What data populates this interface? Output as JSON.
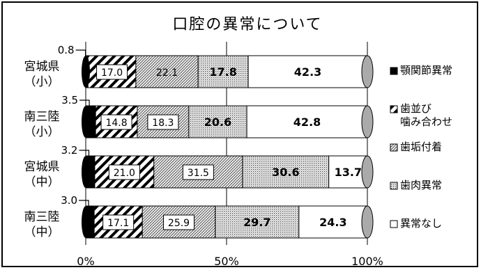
{
  "chart_data": {
    "type": "bar",
    "stacked": true,
    "orientation": "horizontal",
    "title": "口腔の異常について",
    "categories": [
      [
        "宮城県",
        "（小）"
      ],
      [
        "南三陸",
        "（小）"
      ],
      [
        "宮城県",
        "（中）"
      ],
      [
        "南三陸",
        "（中）"
      ]
    ],
    "series": [
      {
        "name": "顎関節異常",
        "values": [
          0.8,
          3.5,
          3.2,
          3.0
        ],
        "color": "#000000",
        "pattern": "solid"
      },
      {
        "name": "歯並び\n噛み合わせ",
        "values": [
          17.0,
          14.8,
          21.0,
          17.1
        ],
        "color": "#ffffff",
        "pattern": "diagonal"
      },
      {
        "name": "歯垢付着",
        "values": [
          22.1,
          18.3,
          31.5,
          25.9
        ],
        "color": "#ffffff",
        "pattern": "crosshatch"
      },
      {
        "name": "歯肉異常",
        "values": [
          17.8,
          20.6,
          30.6,
          29.7
        ],
        "color": "#ffffff",
        "pattern": "dots"
      },
      {
        "name": "異常なし",
        "values": [
          42.3,
          42.8,
          13.7,
          24.3
        ],
        "color": "#ffffff",
        "pattern": "none"
      }
    ],
    "xlim": [
      0,
      100
    ],
    "xticks": [
      "0%",
      "50%",
      "100%"
    ],
    "grid": true,
    "legend": "right",
    "boxed_labels": [
      [
        1
      ],
      [
        1,
        2
      ],
      [
        1,
        2
      ],
      [
        1,
        2
      ]
    ]
  }
}
